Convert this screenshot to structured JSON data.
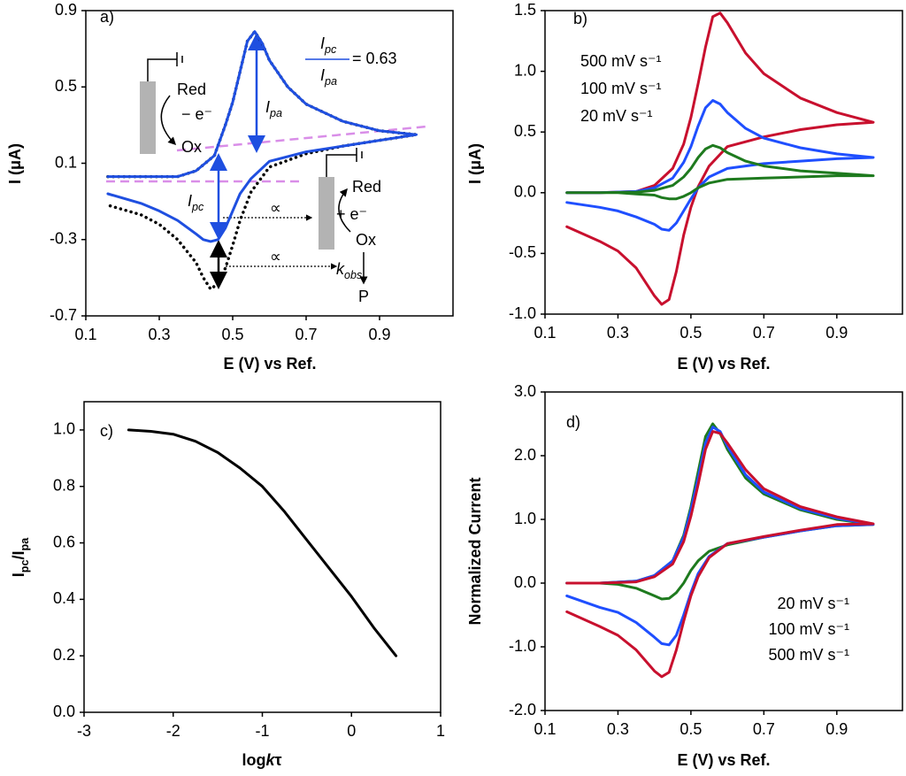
{
  "chart_data": [
    {
      "type": "line",
      "label": "a)",
      "xlabel": "E (V) vs Ref.",
      "ylabel": "I (μA)",
      "xlim": [
        0.1,
        1.1
      ],
      "ylim": [
        -0.7,
        0.9
      ],
      "xticks": [
        0.1,
        0.3,
        0.5,
        0.7,
        0.9
      ],
      "yticks": [
        -0.7,
        -0.3,
        0.1,
        0.5,
        0.9
      ],
      "x": [
        0.16,
        0.25,
        0.35,
        0.4,
        0.45,
        0.48,
        0.5,
        0.52,
        0.54,
        0.56,
        0.58,
        0.6,
        0.65,
        0.7,
        0.8,
        0.9,
        1.0,
        0.9,
        0.8,
        0.7,
        0.6,
        0.55,
        0.52,
        0.5,
        0.48,
        0.46,
        0.44,
        0.42,
        0.4,
        0.35,
        0.3,
        0.25,
        0.16
      ],
      "series": [
        {
          "color": "#000000",
          "style": "dotted",
          "values": [
            0.03,
            0.03,
            0.03,
            0.06,
            0.14,
            0.3,
            0.42,
            0.58,
            0.74,
            0.79,
            0.73,
            0.64,
            0.5,
            0.41,
            0.32,
            0.27,
            0.25,
            0.22,
            0.19,
            0.15,
            0.08,
            -0.05,
            -0.2,
            -0.33,
            -0.45,
            -0.53,
            -0.56,
            -0.5,
            -0.42,
            -0.3,
            -0.22,
            -0.17,
            -0.12
          ]
        },
        {
          "color": "#1f4fe0",
          "style": "solid",
          "values": [
            0.03,
            0.03,
            0.03,
            0.06,
            0.14,
            0.3,
            0.42,
            0.58,
            0.74,
            0.79,
            0.73,
            0.64,
            0.5,
            0.41,
            0.32,
            0.27,
            0.25,
            0.22,
            0.19,
            0.16,
            0.11,
            0.02,
            -0.06,
            -0.15,
            -0.24,
            -0.3,
            -0.31,
            -0.3,
            -0.27,
            -0.2,
            -0.15,
            -0.11,
            -0.06
          ]
        }
      ],
      "annotations": [
        [
          {
            "text": "Red"
          }
        ],
        [
          {
            "text": "− e⁻"
          }
        ],
        [
          {
            "text": "Ox"
          }
        ],
        [
          {
            "text": "I",
            "italic": true
          },
          {
            "text": "pa",
            "italic": true,
            "sub": true
          }
        ],
        [
          {
            "text": "I",
            "italic": true
          },
          {
            "text": "pc",
            "italic": true,
            "sub": true
          }
        ],
        [
          {
            "text": "I",
            "italic": true
          },
          {
            "text": "pc",
            "italic": true,
            "sub": true
          }
        ],
        [
          {
            "text": "I",
            "italic": true
          },
          {
            "text": "pa",
            "italic": true,
            "sub": true
          }
        ],
        [
          {
            "text": "= 0.63"
          }
        ],
        [
          {
            "text": "∝"
          }
        ],
        [
          {
            "text": "∝"
          }
        ],
        [
          {
            "text": "Red"
          }
        ],
        [
          {
            "text": "+ e⁻"
          }
        ],
        [
          {
            "text": "Ox"
          }
        ],
        [
          {
            "text": "k",
            "italic": true
          },
          {
            "text": "obs",
            "italic": true,
            "sub": true
          }
        ],
        [
          {
            "text": "P"
          }
        ]
      ]
    },
    {
      "type": "line",
      "label": "b)",
      "xlabel": "E (V) vs Ref.",
      "ylabel": "I (μA)",
      "legend": "upper left",
      "xlim": [
        0.1,
        1.08
      ],
      "ylim": [
        -1.0,
        1.5
      ],
      "xticks": [
        0.1,
        0.3,
        0.5,
        0.7,
        0.9
      ],
      "yticks": [
        {
          "value": -1.0,
          "label": "-1.0"
        },
        -0.5,
        {
          "value": 0,
          "label": "0.0"
        },
        0.5,
        {
          "value": 1.0,
          "label": "1.0"
        },
        1.5
      ],
      "x": [
        0.16,
        0.25,
        0.35,
        0.4,
        0.45,
        0.48,
        0.5,
        0.52,
        0.54,
        0.56,
        0.58,
        0.6,
        0.65,
        0.7,
        0.8,
        0.9,
        1.0,
        0.9,
        0.8,
        0.7,
        0.6,
        0.55,
        0.52,
        0.5,
        0.48,
        0.46,
        0.44,
        0.42,
        0.4,
        0.35,
        0.3,
        0.25,
        0.16
      ],
      "series": [
        {
          "name": "500 mV s⁻¹",
          "color": "#c8102e",
          "values": [
            0,
            0,
            0.01,
            0.06,
            0.2,
            0.4,
            0.62,
            0.9,
            1.2,
            1.45,
            1.48,
            1.4,
            1.15,
            0.98,
            0.78,
            0.66,
            0.58,
            0.56,
            0.52,
            0.46,
            0.38,
            0.22,
            0.05,
            -0.12,
            -0.35,
            -0.65,
            -0.88,
            -0.92,
            -0.85,
            -0.62,
            -0.48,
            -0.4,
            -0.28
          ]
        },
        {
          "name": "100 mV s⁻¹",
          "color": "#1f4fff",
          "values": [
            0,
            0,
            0.01,
            0.04,
            0.12,
            0.25,
            0.38,
            0.55,
            0.7,
            0.76,
            0.73,
            0.66,
            0.53,
            0.45,
            0.37,
            0.32,
            0.29,
            0.28,
            0.26,
            0.24,
            0.2,
            0.13,
            0.04,
            -0.05,
            -0.15,
            -0.25,
            -0.31,
            -0.3,
            -0.26,
            -0.2,
            -0.15,
            -0.12,
            -0.08
          ]
        },
        {
          "name": "20 mV s⁻¹",
          "color": "#1e7a1e",
          "values": [
            0,
            0,
            0.005,
            0.02,
            0.06,
            0.13,
            0.2,
            0.29,
            0.36,
            0.39,
            0.37,
            0.33,
            0.26,
            0.22,
            0.18,
            0.16,
            0.14,
            0.14,
            0.13,
            0.12,
            0.11,
            0.08,
            0.04,
            0,
            -0.03,
            -0.05,
            -0.05,
            -0.04,
            -0.02,
            -0.01,
            0,
            0,
            0
          ]
        }
      ]
    },
    {
      "type": "line",
      "label": "c)",
      "xlabel": [
        {
          "text": "log"
        },
        {
          "text": "k",
          "italic": true
        },
        {
          "text": "τ"
        }
      ],
      "ylabel": [
        {
          "text": "I"
        },
        {
          "text": "pc",
          "sub": true
        },
        {
          "text": "/I"
        },
        {
          "text": "pa",
          "sub": true
        }
      ],
      "xlim": [
        -3,
        1
      ],
      "ylim": [
        0,
        1.1
      ],
      "xticks": [
        -3,
        -2,
        -1,
        0,
        1
      ],
      "yticks": [
        {
          "value": 0,
          "label": "0.0"
        },
        0.2,
        0.4,
        0.6,
        0.8,
        {
          "value": 1.0,
          "label": "1.0"
        }
      ],
      "x": [
        -2.5,
        -2.25,
        -2.0,
        -1.75,
        -1.5,
        -1.25,
        -1.0,
        -0.75,
        -0.5,
        -0.25,
        0,
        0.25,
        0.5
      ],
      "series": [
        {
          "color": "#000000",
          "values": [
            1.0,
            0.995,
            0.985,
            0.96,
            0.92,
            0.865,
            0.8,
            0.71,
            0.61,
            0.51,
            0.41,
            0.3,
            0.2
          ]
        }
      ]
    },
    {
      "type": "line",
      "label": "d)",
      "xlabel": "E (V) vs Ref.",
      "ylabel": "Normalized Current",
      "legend": "lower right",
      "xlim": [
        0.1,
        1.08
      ],
      "ylim": [
        -2.0,
        3.0
      ],
      "xticks": [
        0.1,
        0.3,
        0.5,
        0.7,
        0.9
      ],
      "yticks": [
        {
          "value": -2.0,
          "label": "-2.0"
        },
        {
          "value": -1.0,
          "label": "-1.0"
        },
        {
          "value": 0,
          "label": "0.0"
        },
        {
          "value": 1.0,
          "label": "1.0"
        },
        {
          "value": 2.0,
          "label": "2.0"
        },
        {
          "value": 3.0,
          "label": "3.0"
        }
      ],
      "x": [
        0.16,
        0.25,
        0.35,
        0.4,
        0.45,
        0.48,
        0.5,
        0.52,
        0.54,
        0.56,
        0.58,
        0.6,
        0.65,
        0.7,
        0.8,
        0.9,
        1.0,
        0.9,
        0.8,
        0.7,
        0.6,
        0.55,
        0.52,
        0.5,
        0.48,
        0.46,
        0.44,
        0.42,
        0.4,
        0.35,
        0.3,
        0.25,
        0.16
      ],
      "series": [
        {
          "name": "20 mV s⁻¹",
          "color": "#1e7a1e",
          "values": [
            0,
            0,
            0.03,
            0.12,
            0.35,
            0.75,
            1.2,
            1.75,
            2.3,
            2.5,
            2.35,
            2.1,
            1.65,
            1.4,
            1.15,
            1.0,
            0.92,
            0.9,
            0.82,
            0.72,
            0.6,
            0.5,
            0.35,
            0.2,
            0,
            -0.15,
            -0.24,
            -0.25,
            -0.2,
            -0.08,
            -0.02,
            0,
            0
          ]
        },
        {
          "name": "100 mV s⁻¹",
          "color": "#1f4fff",
          "values": [
            0,
            0,
            0.03,
            0.12,
            0.35,
            0.72,
            1.15,
            1.65,
            2.2,
            2.45,
            2.38,
            2.15,
            1.7,
            1.43,
            1.17,
            1.02,
            0.92,
            0.9,
            0.82,
            0.72,
            0.62,
            0.42,
            0.15,
            -0.15,
            -0.5,
            -0.82,
            -0.97,
            -0.95,
            -0.85,
            -0.62,
            -0.46,
            -0.38,
            -0.2
          ]
        },
        {
          "name": "500 mV s⁻¹",
          "color": "#c8102e",
          "values": [
            0,
            0,
            0.02,
            0.1,
            0.3,
            0.65,
            1.05,
            1.55,
            2.1,
            2.38,
            2.35,
            2.2,
            1.78,
            1.48,
            1.2,
            1.04,
            0.93,
            0.92,
            0.83,
            0.73,
            0.62,
            0.4,
            0.1,
            -0.2,
            -0.6,
            -1.05,
            -1.4,
            -1.47,
            -1.38,
            -1.05,
            -0.82,
            -0.68,
            -0.45
          ]
        }
      ]
    }
  ]
}
